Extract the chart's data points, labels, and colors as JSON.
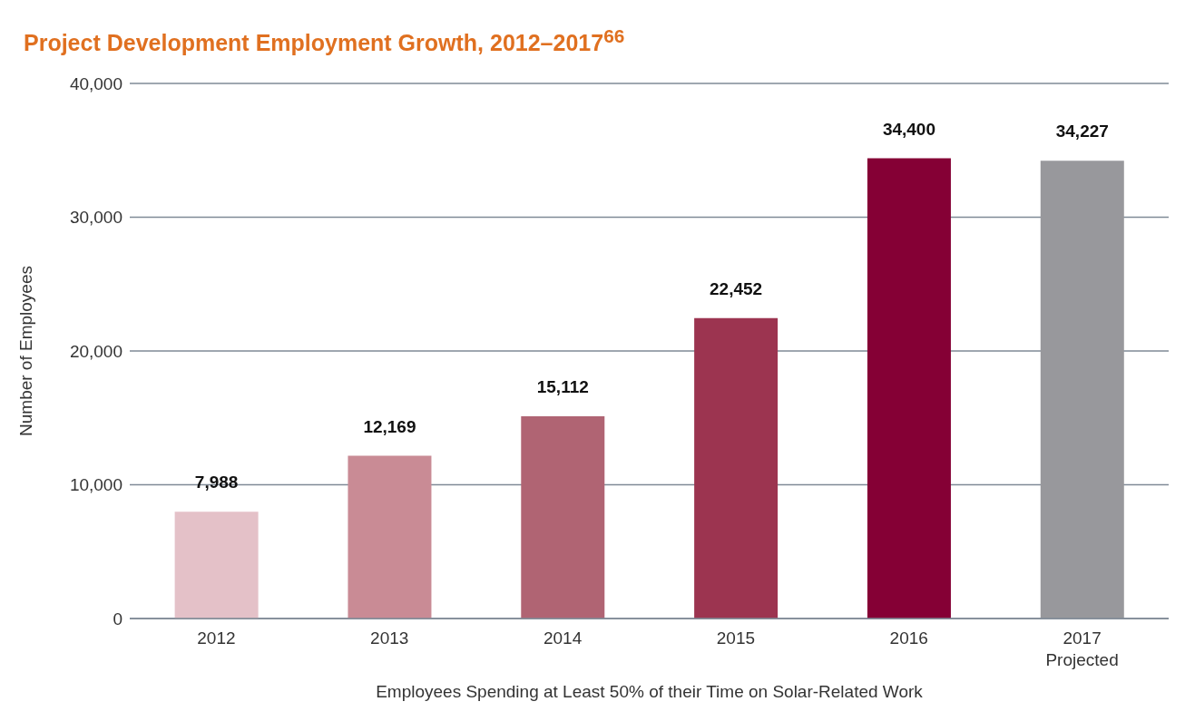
{
  "chart_data": {
    "type": "bar",
    "title": "Project Development Employment Growth, 2012–2017$^{66}$",
    "xlabel": "Employees Spending at Least 50% of their Time on Solar-Related Work",
    "ylabel": "Number of Employees",
    "categories": [
      "2012",
      "2013",
      "2014",
      "2015",
      "2016",
      "2017\nProjected"
    ],
    "values": [
      7988,
      12169,
      15112,
      22452,
      34400,
      34227
    ],
    "colors": [
      "#e4c1c8",
      "#c98b95",
      "#b06473",
      "#9c3450",
      "#850035",
      "#98989c"
    ],
    "value_labels": [
      "7,988",
      "12,169",
      "15,112",
      "22,452",
      "34,400",
      "34,227"
    ],
    "ylim": [
      0,
      40000
    ],
    "yticks": [
      0,
      {
        "value": 10000,
        "label": "10,000"
      },
      {
        "value": 20000,
        "label": "20,000"
      },
      {
        "value": 30000,
        "label": "30,000"
      },
      {
        "value": 40000,
        "label": "40,000"
      }
    ],
    "grid": "y"
  }
}
